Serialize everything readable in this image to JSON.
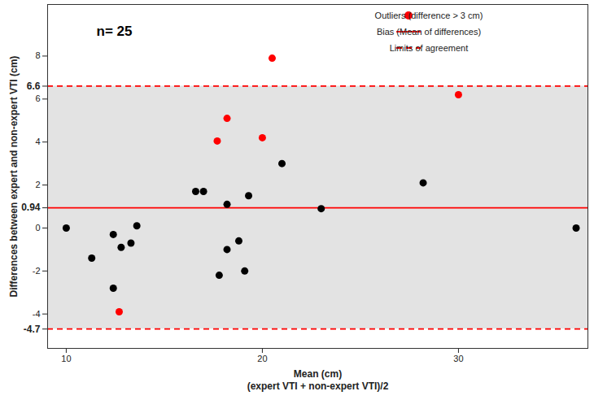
{
  "chart_data": {
    "type": "scatter",
    "annotation": "n= 25",
    "xlabel": [
      "Mean (cm)",
      "(expert VTI + non-expert VTI)/2"
    ],
    "ylabel": "Differences between expert and non-expert VTI (cm)",
    "series": [
      {
        "color": "black",
        "marker": "circle",
        "x": [
          10.0,
          11.3,
          12.4,
          12.4,
          12.8,
          13.3,
          13.6,
          16.6,
          17.0,
          17.8,
          18.2,
          18.2,
          18.8,
          19.1,
          19.3,
          21.0,
          23.0,
          28.2,
          36.0
        ],
        "values": [
          0.0,
          -1.4,
          -0.3,
          -2.8,
          -0.9,
          -0.7,
          0.1,
          1.7,
          1.7,
          -2.2,
          1.1,
          -1.0,
          -0.6,
          -2.0,
          1.5,
          3.0,
          0.9,
          2.1,
          0.0
        ]
      },
      {
        "name": "Outliers (difference > 3 cm)",
        "color": "red",
        "marker": "circle",
        "x": [
          12.7,
          17.7,
          18.2,
          20.0,
          20.5,
          30.0
        ],
        "values": [
          -3.9,
          4.05,
          5.1,
          4.2,
          7.9,
          6.2
        ]
      }
    ],
    "reference_lines": [
      {
        "name": "Bias (Mean of differences)",
        "values": [
          0.94
        ],
        "color": "red",
        "line_style": "solid"
      },
      {
        "name": "Limits of agreement",
        "values": [
          6.6,
          -4.7
        ],
        "color": "red",
        "line_style": "dashed"
      }
    ],
    "xlim": [
      9.05,
      36.6
    ],
    "xticks": [
      10,
      20,
      30
    ],
    "ylim": [
      -5.6,
      10.4
    ],
    "yticks": [
      -4.7,
      -4,
      -2,
      0,
      0.94,
      2,
      4,
      6,
      6.6,
      8
    ],
    "legend": "top-right"
  }
}
